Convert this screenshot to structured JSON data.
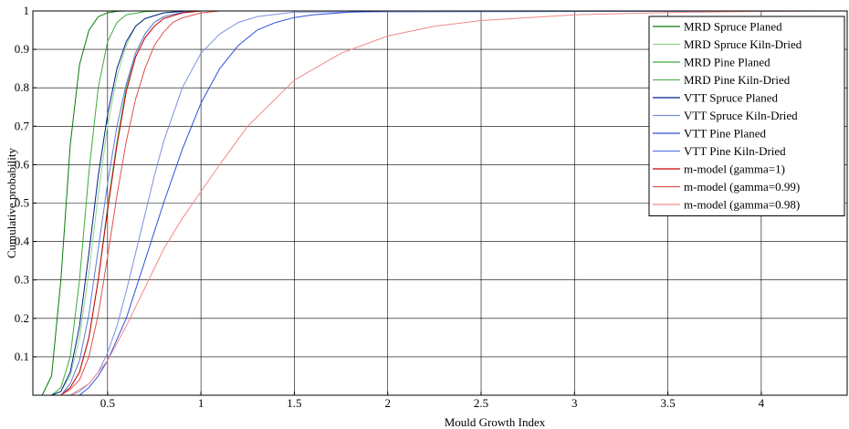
{
  "chart_data": {
    "type": "line",
    "title": "",
    "xlabel": "Mould Growth Index",
    "ylabel": "Cumulative probability",
    "xlim": [
      0.1,
      4.46
    ],
    "ylim": [
      0,
      1
    ],
    "x_ticks": [
      0.5,
      1,
      1.5,
      2,
      2.5,
      3,
      3.5,
      4
    ],
    "x_tick_labels": [
      "0.5",
      "1",
      "1.5",
      "2",
      "2.5",
      "3",
      "3.5",
      "4"
    ],
    "y_ticks": [
      0.1,
      0.2,
      0.3,
      0.4,
      0.5,
      0.6,
      0.7,
      0.8,
      0.9,
      1
    ],
    "y_tick_labels": [
      "0.1",
      "0.2",
      "0.3",
      "0.4",
      "0.5",
      "0.6",
      "0.7",
      "0.8",
      "0.9",
      "1"
    ],
    "grid": true,
    "legend_position": "top-right",
    "series": [
      {
        "name": "MRD Spruce Planed",
        "color": "#0a7a0a",
        "x": [
          0.1,
          0.15,
          0.2,
          0.25,
          0.3,
          0.35,
          0.4,
          0.45,
          0.5,
          0.55,
          0.6,
          0.7,
          4.46
        ],
        "y": [
          0,
          0,
          0.05,
          0.3,
          0.65,
          0.86,
          0.95,
          0.985,
          0.995,
          0.999,
          1,
          1,
          1
        ]
      },
      {
        "name": "MRD Spruce Kiln-Dried",
        "color": "#8fd48f",
        "x": [
          0.1,
          0.2,
          0.25,
          0.3,
          0.35,
          0.4,
          0.45,
          0.5,
          0.55,
          0.6,
          0.65,
          0.7,
          0.8,
          0.9,
          4.46
        ],
        "y": [
          0,
          0,
          0.01,
          0.05,
          0.15,
          0.32,
          0.52,
          0.7,
          0.83,
          0.91,
          0.96,
          0.98,
          0.995,
          1,
          1
        ]
      },
      {
        "name": "MRD Pine Planed",
        "color": "#3daa3d",
        "x": [
          0.1,
          0.2,
          0.25,
          0.3,
          0.35,
          0.4,
          0.45,
          0.5,
          0.55,
          0.6,
          0.7,
          0.8,
          4.46
        ],
        "y": [
          0,
          0,
          0.02,
          0.1,
          0.3,
          0.58,
          0.8,
          0.92,
          0.97,
          0.99,
          0.998,
          1,
          1
        ]
      },
      {
        "name": "MRD Pine Kiln-Dried",
        "color": "#5cb85c",
        "x": [
          0.1,
          0.25,
          0.3,
          0.35,
          0.4,
          0.45,
          0.5,
          0.55,
          0.6,
          0.65,
          0.7,
          0.75,
          0.8,
          0.9,
          1.0,
          4.46
        ],
        "y": [
          0,
          0,
          0.02,
          0.06,
          0.15,
          0.3,
          0.49,
          0.66,
          0.8,
          0.89,
          0.94,
          0.97,
          0.985,
          0.997,
          1,
          1
        ]
      },
      {
        "name": "VTT Spruce Planed",
        "color": "#00208c",
        "x": [
          0.1,
          0.2,
          0.25,
          0.3,
          0.35,
          0.4,
          0.45,
          0.5,
          0.55,
          0.6,
          0.65,
          0.7,
          0.8,
          0.9,
          1.0,
          4.46
        ],
        "y": [
          0,
          0,
          0.01,
          0.06,
          0.18,
          0.37,
          0.57,
          0.73,
          0.85,
          0.92,
          0.96,
          0.98,
          0.995,
          0.999,
          1,
          1
        ]
      },
      {
        "name": "VTT Spruce Kiln-Dried",
        "color": "#7b8fe0",
        "x": [
          0.1,
          0.3,
          0.35,
          0.4,
          0.45,
          0.5,
          0.55,
          0.6,
          0.65,
          0.7,
          0.75,
          0.8,
          0.9,
          1.0,
          1.1,
          1.2,
          1.3,
          1.5,
          4.46
        ],
        "y": [
          0,
          0,
          0.01,
          0.03,
          0.06,
          0.11,
          0.18,
          0.27,
          0.37,
          0.47,
          0.57,
          0.66,
          0.8,
          0.89,
          0.94,
          0.97,
          0.985,
          0.997,
          1
        ]
      },
      {
        "name": "VTT Pine Planed",
        "color": "#2e4fdc",
        "x": [
          0.1,
          0.35,
          0.4,
          0.45,
          0.5,
          0.6,
          0.7,
          0.8,
          0.9,
          1.0,
          1.1,
          1.2,
          1.3,
          1.4,
          1.5,
          1.6,
          1.8,
          2.0,
          4.46
        ],
        "y": [
          0,
          0,
          0.02,
          0.05,
          0.09,
          0.2,
          0.35,
          0.5,
          0.64,
          0.76,
          0.85,
          0.91,
          0.95,
          0.97,
          0.983,
          0.99,
          0.997,
          1,
          1
        ]
      },
      {
        "name": "VTT Pine Kiln-Dried",
        "color": "#5c7be0",
        "x": [
          0.1,
          0.25,
          0.3,
          0.35,
          0.4,
          0.45,
          0.5,
          0.55,
          0.6,
          0.65,
          0.7,
          0.75,
          0.8,
          0.9,
          1.0,
          4.46
        ],
        "y": [
          0,
          0,
          0.03,
          0.09,
          0.21,
          0.38,
          0.55,
          0.7,
          0.81,
          0.89,
          0.94,
          0.97,
          0.985,
          0.997,
          1,
          1
        ]
      },
      {
        "name": "m-model (gamma=1)",
        "color": "#cc0000",
        "x": [
          0.1,
          0.25,
          0.3,
          0.35,
          0.4,
          0.45,
          0.5,
          0.55,
          0.6,
          0.65,
          0.7,
          0.75,
          0.8,
          0.9,
          1.0,
          4.46
        ],
        "y": [
          0,
          0,
          0.02,
          0.06,
          0.15,
          0.3,
          0.48,
          0.65,
          0.79,
          0.88,
          0.93,
          0.96,
          0.98,
          0.995,
          1,
          1
        ]
      },
      {
        "name": "m-model (gamma=0.99)",
        "color": "#e05050",
        "x": [
          0.1,
          0.25,
          0.3,
          0.35,
          0.4,
          0.45,
          0.5,
          0.55,
          0.6,
          0.65,
          0.7,
          0.75,
          0.8,
          0.85,
          0.9,
          1.0,
          1.1,
          4.46
        ],
        "y": [
          0,
          0,
          0.015,
          0.04,
          0.1,
          0.21,
          0.36,
          0.52,
          0.66,
          0.77,
          0.85,
          0.91,
          0.945,
          0.97,
          0.982,
          0.995,
          1,
          1
        ]
      },
      {
        "name": "m-model (gamma=0.98)",
        "color": "#f08a8a",
        "x": [
          0.1,
          0.3,
          0.4,
          0.5,
          0.6,
          0.7,
          0.8,
          0.9,
          1.0,
          1.1,
          1.25,
          1.5,
          1.75,
          2.0,
          2.25,
          2.5,
          3.0,
          3.5,
          4.0,
          4.46
        ],
        "y": [
          0,
          0,
          0.03,
          0.09,
          0.18,
          0.28,
          0.38,
          0.46,
          0.53,
          0.6,
          0.7,
          0.82,
          0.89,
          0.935,
          0.96,
          0.975,
          0.99,
          0.996,
          0.999,
          1
        ]
      }
    ]
  }
}
